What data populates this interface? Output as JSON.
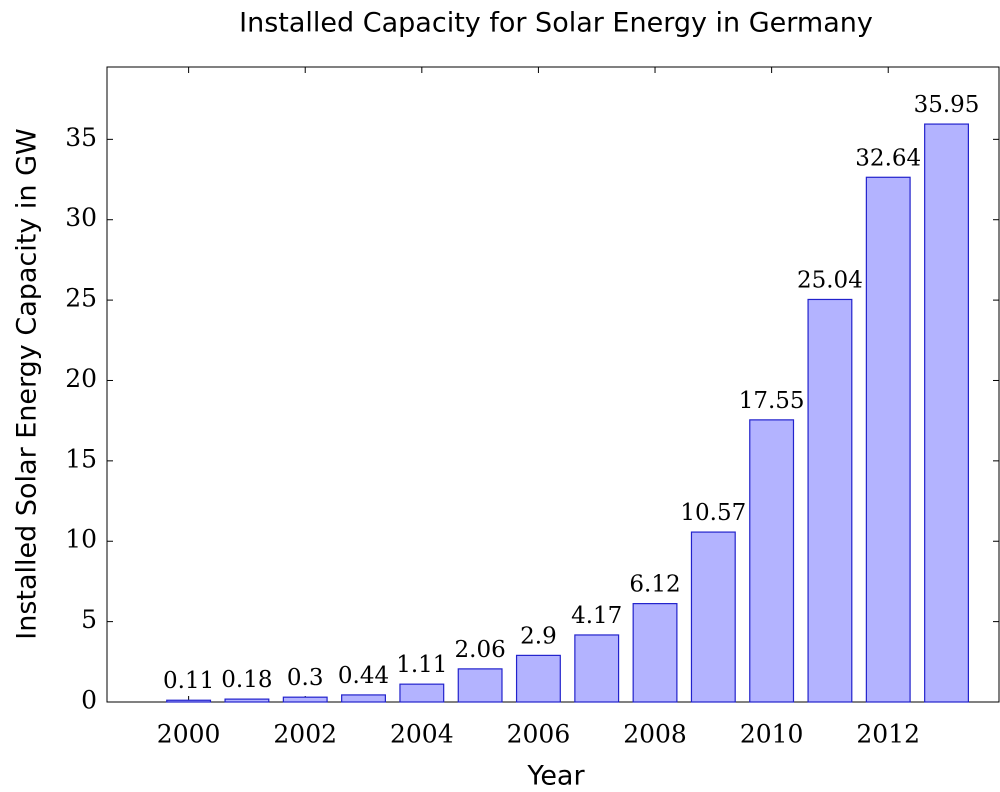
{
  "chart_data": {
    "type": "bar",
    "title": "Installed Capacity for Solar Energy in Germany",
    "xlabel": "Year",
    "ylabel": "Installed Solar Energy Capacity in GW",
    "x": [
      2000,
      2001,
      2002,
      2003,
      2004,
      2005,
      2006,
      2007,
      2008,
      2009,
      2010,
      2011,
      2012,
      2013
    ],
    "values": [
      0.11,
      0.18,
      0.3,
      0.44,
      1.11,
      2.06,
      2.9,
      4.17,
      6.12,
      10.57,
      17.55,
      25.04,
      32.64,
      35.95
    ],
    "color": "#b3b3ff",
    "edge_color": "#2222cc",
    "xlim": [
      1998.6,
      2013.9
    ],
    "xticks": [
      2000,
      2002,
      2004,
      2006,
      2008,
      2010,
      2012
    ],
    "ylim": [
      0,
      39.5
    ],
    "yticks": [
      0,
      5,
      10,
      15,
      20,
      25,
      30,
      35
    ]
  }
}
